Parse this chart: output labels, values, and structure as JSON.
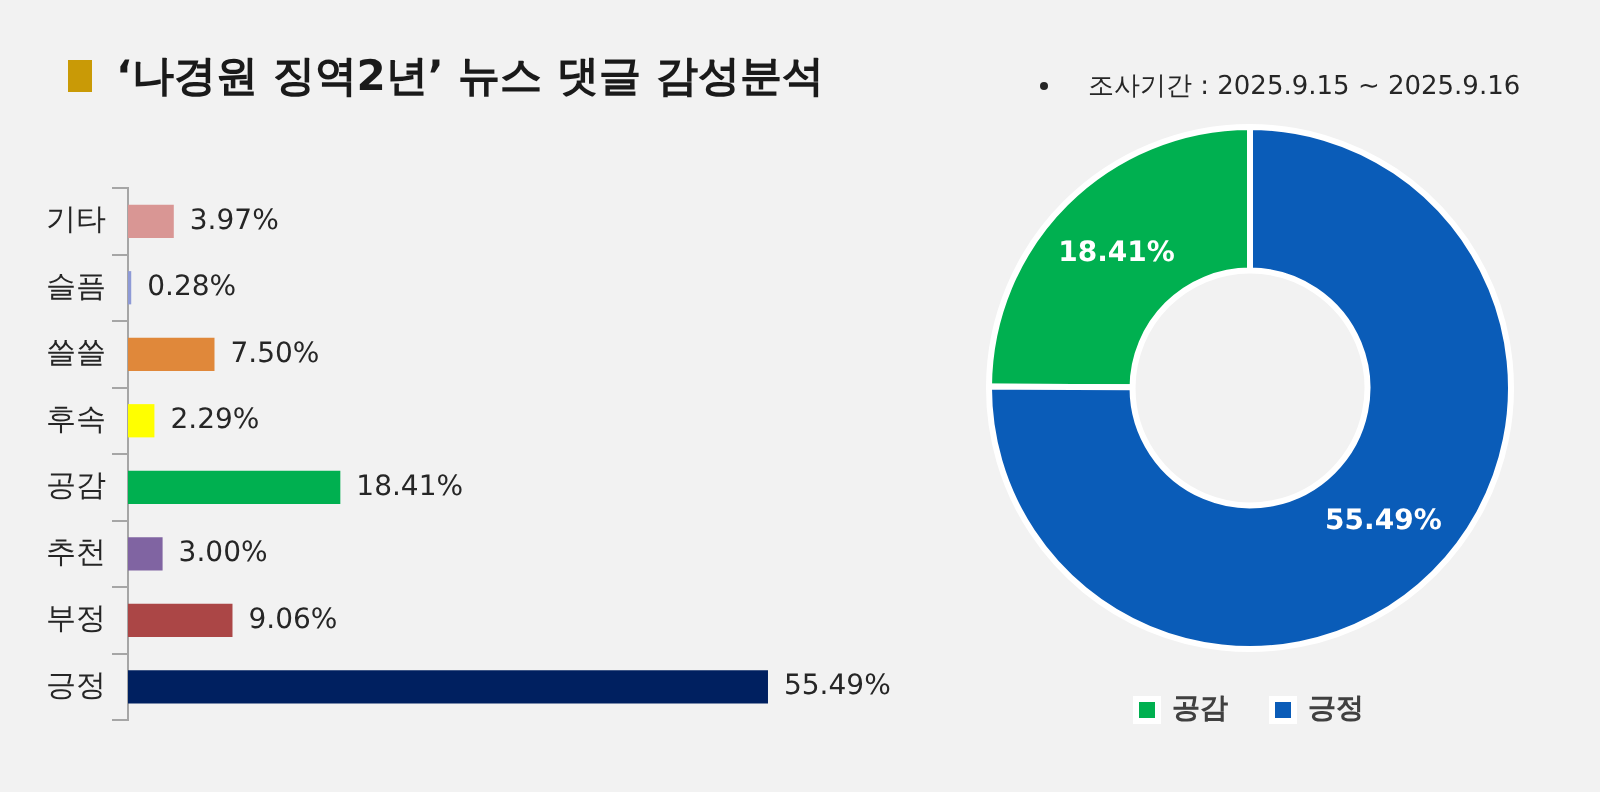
{
  "chart_data": [
    {
      "type": "bar",
      "orientation": "horizontal",
      "title": "‘나경원 징역2년’ 뉴스 댓글 감성분석",
      "categories": [
        "기타",
        "슬픔",
        "쓸쓸",
        "후속",
        "공감",
        "추천",
        "부정",
        "긍정"
      ],
      "values": [
        3.97,
        0.28,
        7.5,
        2.29,
        18.41,
        3.0,
        9.06,
        55.49
      ],
      "colors": [
        "#d99694",
        "#8e9ad6",
        "#e0883a",
        "#ffff00",
        "#00b050",
        "#8064a2",
        "#ab4646",
        "#002060"
      ],
      "value_labels": [
        "3.97%",
        "0.28%",
        "7.50%",
        "2.29%",
        "18.41%",
        "3.00%",
        "9.06%",
        "55.49%"
      ],
      "legend": false
    },
    {
      "type": "donut",
      "annotations": [
        "조사기간 : 2025.9.15 ~ 2025.9.16"
      ],
      "categories": [
        "공감",
        "긍정"
      ],
      "values": [
        18.41,
        55.49
      ],
      "colors": [
        "#00b050",
        "#0a5cb8"
      ],
      "value_labels": [
        "18.41%",
        "55.49%"
      ],
      "legend": "bottom"
    }
  ]
}
